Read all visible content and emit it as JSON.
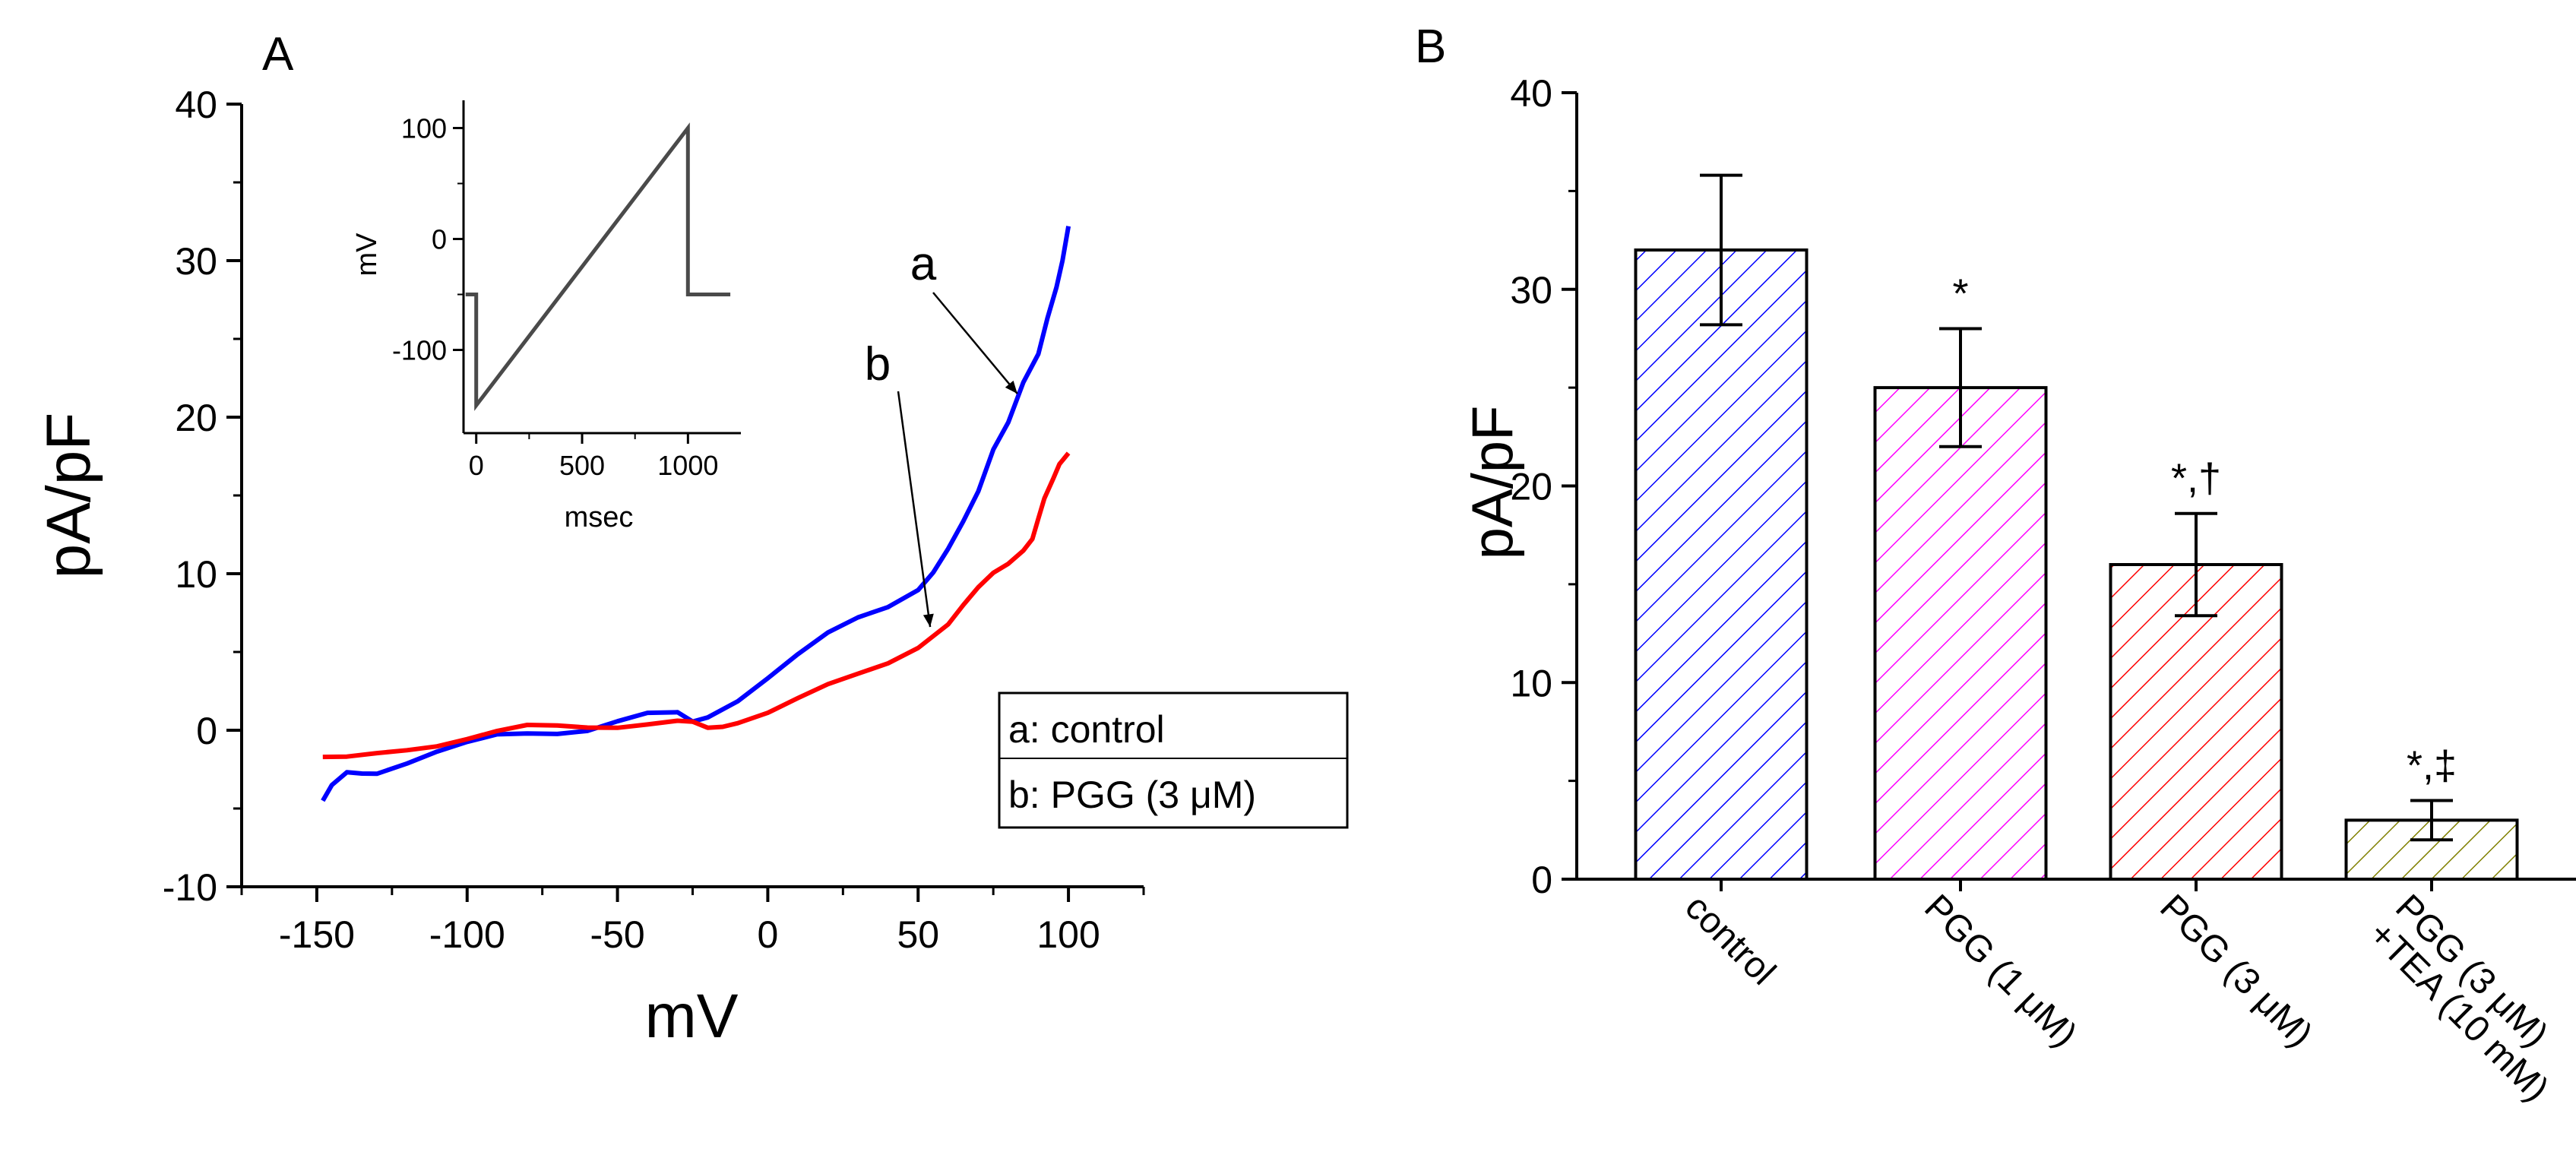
{
  "colors": {
    "trace_a": "#0000ff",
    "trace_b": "#ff0000",
    "inset_trace": "#4a4a4a",
    "bar_control": "#0000ff",
    "bar_pgg1": "#ff00ff",
    "bar_pgg3": "#ff0000",
    "bar_pgg3_tea": "#808000"
  },
  "chart_data": [
    {
      "type": "line",
      "panel_label": "A",
      "xlabel": "mV",
      "ylabel": "pA/pF",
      "xlim": [
        -175,
        125
      ],
      "ylim": [
        -10,
        40
      ],
      "xticks": [
        -150,
        -100,
        -50,
        0,
        50,
        100
      ],
      "yticks": [
        -10,
        0,
        10,
        20,
        30,
        40
      ],
      "series": [
        {
          "name": "a: control",
          "trace_label": "a",
          "x": [
            -148,
            -145,
            -140,
            -135,
            -130,
            -120,
            -110,
            -100,
            -90,
            -80,
            -70,
            -60,
            -50,
            -40,
            -30,
            -25,
            -20,
            -10,
            0,
            10,
            20,
            30,
            40,
            50,
            55,
            60,
            65,
            70,
            75,
            80,
            85,
            90,
            93,
            96,
            98,
            100
          ],
          "y": [
            -4.5,
            -3.8,
            -3.0,
            -2.8,
            -2.5,
            -1.8,
            -1.3,
            -1.0,
            -0.6,
            -0.3,
            0.0,
            0.3,
            0.7,
            0.9,
            0.8,
            0.4,
            1.0,
            2.2,
            3.5,
            4.7,
            5.9,
            7.0,
            8.0,
            9.3,
            10.3,
            11.5,
            13.0,
            15.0,
            18.0,
            20.0,
            22.5,
            24.0,
            26.0,
            28.0,
            30.0,
            32.5
          ]
        },
        {
          "name": "b: PGG (3 μM)",
          "trace_label": "b",
          "x": [
            -148,
            -140,
            -130,
            -120,
            -110,
            -100,
            -90,
            -80,
            -70,
            -60,
            -50,
            -40,
            -30,
            -25,
            -20,
            -15,
            -10,
            0,
            10,
            20,
            30,
            40,
            50,
            60,
            65,
            70,
            75,
            80,
            85,
            88,
            90,
            92,
            95,
            97,
            100
          ],
          "y": [
            -2.0,
            -2.0,
            -1.5,
            -1.0,
            -0.7,
            -0.5,
            -0.3,
            0.0,
            0.2,
            0.4,
            0.5,
            0.5,
            0.4,
            0.2,
            0.0,
            0.4,
            0.8,
            1.3,
            1.9,
            2.6,
            3.4,
            4.4,
            5.6,
            7.0,
            7.9,
            8.8,
            9.8,
            10.7,
            11.8,
            12.5,
            13.5,
            14.5,
            15.8,
            17.0,
            18.0
          ]
        }
      ],
      "annotations": [
        {
          "text": "a",
          "target_series": "a: control"
        },
        {
          "text": "b",
          "target_series": "b: PGG (3 μM)"
        }
      ],
      "legend": {
        "placement": "bottom-right",
        "entries": [
          "a: control",
          "b: PGG (3 μM)"
        ]
      },
      "inset": {
        "type": "line",
        "xlabel": "msec",
        "ylabel": "mV",
        "xlim": [
          -60,
          1250
        ],
        "ylim": [
          -175,
          125
        ],
        "xticks": [
          0,
          500,
          1000
        ],
        "yticks": [
          -100,
          0,
          100
        ],
        "x": [
          -50,
          0,
          0,
          1000,
          1000,
          1200
        ],
        "y": [
          -50,
          -50,
          -150,
          100,
          -50,
          -50
        ]
      }
    },
    {
      "type": "bar",
      "panel_label": "B",
      "xlabel": "",
      "ylabel": "pA/pF",
      "ylim": [
        0,
        40
      ],
      "yticks": [
        0,
        10,
        20,
        30,
        40
      ],
      "categories": [
        "control",
        "PGG (1 μM)",
        "PGG (3 μM)",
        "PGG (3 μM) +TEA (10 mM)"
      ],
      "category_lines": [
        [
          "control"
        ],
        [
          "PGG (1 μM)"
        ],
        [
          "PGG (3 μM)"
        ],
        [
          "PGG (3 μM)",
          "+TEA (10 mM)"
        ]
      ],
      "values": [
        32,
        25,
        16,
        3
      ],
      "errors": [
        3.8,
        3.0,
        2.6,
        1.0
      ],
      "significance": [
        "",
        "*",
        "*,†",
        "*,‡"
      ]
    }
  ]
}
